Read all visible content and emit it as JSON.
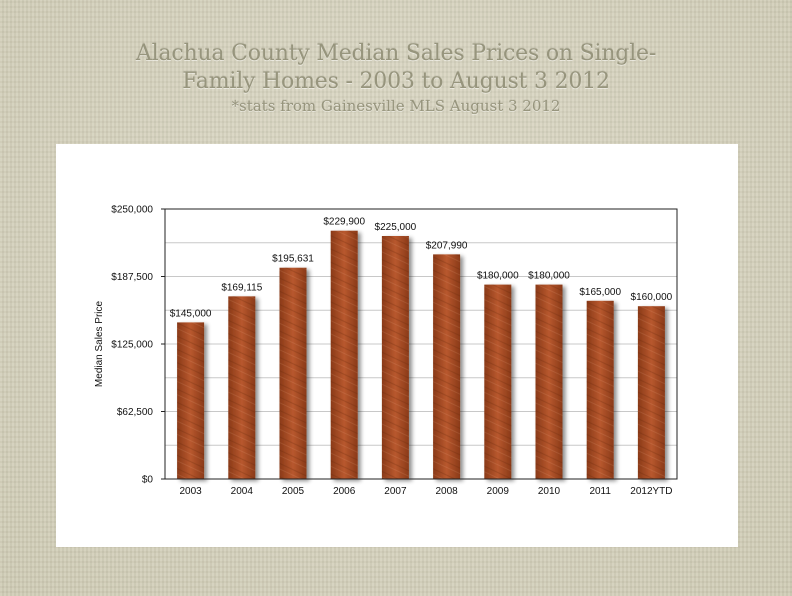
{
  "page": {
    "title_lines": [
      "Alachua County Median Sales Prices on Single-",
      "Family Homes - 2003 to August 3 2012"
    ],
    "subtitle": "*stats from Gainesville MLS August 3 2012"
  },
  "chart_data": {
    "type": "bar",
    "title": "Alachua County Median Sales Prices on Single-Family Homes - 2003 to August 3 2012",
    "subtitle": "*stats from Gainesville MLS August 3 2012",
    "xlabel": "",
    "ylabel": "Median Sales Price",
    "categories": [
      "2003",
      "2004",
      "2005",
      "2006",
      "2007",
      "2008",
      "2009",
      "2010",
      "2011",
      "2012YTD"
    ],
    "values": [
      145000,
      169115,
      195631,
      229900,
      225000,
      207990,
      180000,
      180000,
      165000,
      160000
    ],
    "value_labels": [
      "$145,000",
      "$169,115",
      "$195,631",
      "$229,900",
      "$225,000",
      "$207,990",
      "$180,000",
      "$180,000",
      "$165,000",
      "$160,000"
    ],
    "ylim": [
      0,
      250000
    ],
    "yticks": [
      0,
      62500,
      125000,
      187500,
      250000
    ],
    "ytick_labels": [
      "$0",
      "$62,500",
      "$125,000",
      "$187,500",
      "$250,000"
    ],
    "grid": true,
    "bar_color": "#b8582e",
    "bar_color_dark": "#8a3a18"
  }
}
